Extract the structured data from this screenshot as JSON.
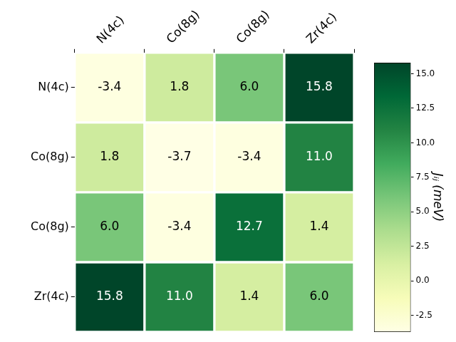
{
  "chart_data": {
    "type": "heatmap",
    "x": [
      "N(4c)",
      "Co(8g)",
      "Co(8g)",
      "Zr(4c)"
    ],
    "y": [
      "N(4c)",
      "Co(8g)",
      "Co(8g)",
      "Zr(4c)"
    ],
    "values": [
      [
        -3.4,
        1.8,
        6.0,
        15.8
      ],
      [
        1.8,
        -3.7,
        -3.4,
        11.0
      ],
      [
        6.0,
        -3.4,
        12.7,
        1.4
      ],
      [
        15.8,
        11.0,
        1.4,
        6.0
      ]
    ],
    "value_labels": [
      [
        "-3.4",
        "1.8",
        "6.0",
        "15.8"
      ],
      [
        "1.8",
        "-3.7",
        "-3.4",
        "11.0"
      ],
      [
        "6.0",
        "-3.4",
        "12.7",
        "1.4"
      ],
      [
        "15.8",
        "11.0",
        "1.4",
        "6.0"
      ]
    ],
    "data_labels": true,
    "color": "YlGn",
    "colorbar": {
      "label": "Jᵢⱼ (meV)",
      "range": [
        -3.7,
        15.8
      ],
      "ticks": [
        {
          "value": -2.5,
          "label": "-2.5"
        },
        {
          "value": 0,
          "label": "0.0"
        },
        {
          "value": 2.5,
          "label": "2.5"
        },
        {
          "value": 5,
          "label": "5.0"
        },
        {
          "value": 7.5,
          "label": "7.5"
        },
        {
          "value": 10,
          "label": "10.0"
        },
        {
          "value": 12.5,
          "label": "12.5"
        },
        {
          "value": 15,
          "label": "15.0"
        }
      ]
    }
  }
}
